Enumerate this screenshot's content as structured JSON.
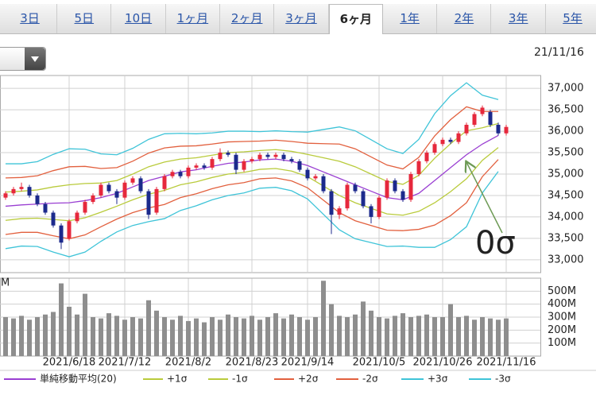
{
  "tabs": [
    "3日",
    "5日",
    "10日",
    "1ヶ月",
    "2ヶ月",
    "3ヶ月",
    "6ヶ月",
    "1年",
    "2年",
    "3年",
    "5年"
  ],
  "selected_tab": 6,
  "date": "21/11/16",
  "chart_data": [
    {
      "type": "candlestick",
      "annotation": "0σ",
      "annotation_color": "#7aab3c",
      "up_color": "#e6283c",
      "down_color": "#1c2a8c",
      "ylim": [
        32700,
        37300
      ],
      "yticks": [
        {
          "value": 33000,
          "label": "33,000"
        },
        {
          "value": 33500,
          "label": "33,500"
        },
        {
          "value": 34000,
          "label": "34,000"
        },
        {
          "value": 34500,
          "label": "34,500"
        },
        {
          "value": 35000,
          "label": "35,000"
        },
        {
          "value": 35500,
          "label": "35,500"
        },
        {
          "value": 36000,
          "label": "36,000"
        },
        {
          "value": 36500,
          "label": "36,500"
        },
        {
          "value": 37000,
          "label": "37,000"
        }
      ],
      "grid": true,
      "open": [
        34450,
        34550,
        34650,
        34700,
        34500,
        34300,
        34100,
        33800,
        33500,
        33900,
        34100,
        34350,
        34500,
        34750,
        34600,
        34450,
        34800,
        34900,
        34600,
        34100,
        34650,
        34950,
        35050,
        34950,
        35150,
        35200,
        35150,
        35350,
        35500,
        35450,
        35100,
        35300,
        35350,
        35450,
        35400,
        35450,
        35350,
        35300,
        35100,
        34900,
        34950,
        34600,
        34050,
        34200,
        34750,
        34600,
        34250,
        34000,
        34450,
        34850,
        34600,
        34400,
        35000,
        35300,
        35500,
        35700,
        35800,
        35750,
        35950,
        36150,
        36400,
        36450,
        36150,
        35950
      ],
      "close": [
        34550,
        34650,
        34700,
        34500,
        34300,
        34100,
        33800,
        33400,
        33900,
        34100,
        34350,
        34500,
        34750,
        34600,
        34450,
        34800,
        34900,
        34600,
        34050,
        34650,
        34950,
        35050,
        34950,
        35150,
        35200,
        35150,
        35350,
        35500,
        35450,
        35100,
        35300,
        35350,
        35450,
        35400,
        35450,
        35350,
        35300,
        35100,
        34900,
        34950,
        34600,
        34050,
        34200,
        34750,
        34600,
        34250,
        34000,
        34450,
        34850,
        34600,
        34400,
        35000,
        35300,
        35500,
        35700,
        35800,
        35750,
        35950,
        36150,
        36400,
        36550,
        36150,
        35950,
        36100
      ],
      "high": [
        34600,
        34700,
        34800,
        34750,
        34550,
        34350,
        34150,
        33850,
        33950,
        34150,
        34400,
        34550,
        34800,
        34800,
        34650,
        34850,
        34950,
        34950,
        34650,
        34700,
        35000,
        35100,
        35100,
        35200,
        35250,
        35250,
        35400,
        35600,
        35550,
        35500,
        35350,
        35400,
        35500,
        35500,
        35500,
        35500,
        35400,
        35350,
        35150,
        35000,
        35000,
        34650,
        34250,
        34800,
        34800,
        34650,
        34300,
        34500,
        34900,
        34900,
        34650,
        35050,
        35350,
        35550,
        35750,
        35850,
        35850,
        36000,
        36200,
        36450,
        36600,
        36500,
        36200,
        36150
      ],
      "low": [
        34400,
        34500,
        34600,
        34450,
        34250,
        34050,
        33750,
        33250,
        33450,
        33850,
        34050,
        34300,
        34450,
        34550,
        34300,
        34400,
        34750,
        34550,
        33950,
        34050,
        34600,
        34900,
        34900,
        34900,
        35100,
        35100,
        35100,
        35300,
        35400,
        35000,
        35050,
        35250,
        35300,
        35350,
        35350,
        35300,
        35250,
        35050,
        34850,
        34850,
        34550,
        33600,
        33950,
        34150,
        34550,
        34200,
        33850,
        33950,
        34400,
        34550,
        34350,
        34350,
        34950,
        35250,
        35450,
        35650,
        35700,
        35700,
        35900,
        36100,
        36350,
        36100,
        35900,
        35900
      ],
      "line_index": [
        0,
        2,
        4,
        6,
        8,
        10,
        12,
        14,
        16,
        18,
        20,
        22,
        24,
        26,
        28,
        30,
        32,
        34,
        36,
        38,
        40,
        42,
        44,
        46,
        48,
        50,
        52,
        54,
        56,
        58,
        60,
        62
      ],
      "series": [
        {
          "name": "+3σ",
          "color": "#3fc4d8",
          "values": [
            35240,
            35240,
            35290,
            35460,
            35590,
            35580,
            35470,
            35450,
            35600,
            35810,
            35940,
            35950,
            35940,
            35960,
            36000,
            36000,
            35990,
            36010,
            35990,
            35980,
            36040,
            36100,
            36010,
            35800,
            35590,
            35480,
            35810,
            36410,
            36830,
            37130,
            36840,
            36740
          ]
        },
        {
          "name": "-3σ",
          "color": "#3fc4d8",
          "values": [
            33260,
            33320,
            33310,
            33180,
            33070,
            33180,
            33430,
            33650,
            33800,
            33890,
            33960,
            34150,
            34260,
            34400,
            34500,
            34560,
            34670,
            34690,
            34610,
            34420,
            34060,
            33700,
            33490,
            33400,
            33310,
            33320,
            33290,
            33290,
            33470,
            33770,
            34560,
            35060
          ]
        },
        {
          "name": "+2σ",
          "color": "#e2603e",
          "values": [
            34910,
            34920,
            34960,
            35080,
            35170,
            35180,
            35130,
            35150,
            35300,
            35490,
            35610,
            35650,
            35660,
            35700,
            35750,
            35760,
            35770,
            35790,
            35760,
            35720,
            35710,
            35700,
            35590,
            35400,
            35210,
            35120,
            35390,
            35890,
            36270,
            36570,
            36460,
            36460
          ]
        },
        {
          "name": "-2σ",
          "color": "#e2603e",
          "values": [
            33590,
            33640,
            33640,
            33560,
            33490,
            33580,
            33770,
            33950,
            34100,
            34210,
            34290,
            34450,
            34540,
            34660,
            34750,
            34800,
            34890,
            34910,
            34840,
            34680,
            34390,
            34100,
            33910,
            33800,
            33690,
            33680,
            33710,
            33810,
            34030,
            34330,
            34940,
            35340
          ]
        },
        {
          "name": "+1σ",
          "color": "#b9cb3c",
          "values": [
            34580,
            34600,
            34630,
            34700,
            34750,
            34780,
            34790,
            34850,
            35000,
            35170,
            35280,
            35350,
            35380,
            35440,
            35500,
            35520,
            35550,
            35570,
            35530,
            35460,
            35380,
            35300,
            35170,
            35000,
            34830,
            34760,
            34970,
            35370,
            35710,
            36010,
            36080,
            36180
          ]
        },
        {
          "name": "-1σ",
          "color": "#b9cb3c",
          "values": [
            33920,
            33960,
            33970,
            33940,
            33910,
            33980,
            34110,
            34250,
            34400,
            34530,
            34620,
            34750,
            34820,
            34920,
            35000,
            35040,
            35110,
            35130,
            35070,
            34940,
            34720,
            34500,
            34330,
            34200,
            34070,
            34040,
            34130,
            34330,
            34590,
            34890,
            35320,
            35620
          ]
        },
        {
          "name": "単純移動平均(20)",
          "color": "#9a3fd2",
          "values": [
            34250,
            34280,
            34300,
            34320,
            34330,
            34380,
            34450,
            34550,
            34700,
            34850,
            34950,
            35050,
            35100,
            35180,
            35250,
            35280,
            35330,
            35350,
            35300,
            35200,
            35050,
            34900,
            34750,
            34600,
            34450,
            34400,
            34550,
            34850,
            35150,
            35450,
            35700,
            35900
          ]
        }
      ]
    },
    {
      "type": "bar",
      "unit_label": "M",
      "color": "#8e8e8e",
      "categories": [
        null,
        null,
        null,
        null,
        null,
        null,
        null,
        null,
        "2021/6/18",
        null,
        null,
        null,
        null,
        null,
        null,
        "2021/7/12",
        null,
        null,
        null,
        null,
        null,
        null,
        null,
        "2021/8/2",
        null,
        null,
        null,
        null,
        null,
        null,
        null,
        "2021/8/23",
        null,
        null,
        null,
        null,
        null,
        null,
        "2021/9/14",
        null,
        null,
        null,
        null,
        null,
        null,
        null,
        null,
        "2021/10/5",
        null,
        null,
        null,
        null,
        null,
        null,
        null,
        "2021/10/26",
        null,
        null,
        null,
        null,
        null,
        null,
        null,
        "2021/11/16"
      ],
      "values": [
        300,
        290,
        310,
        280,
        300,
        320,
        340,
        560,
        380,
        320,
        480,
        300,
        290,
        330,
        310,
        280,
        300,
        290,
        430,
        350,
        300,
        280,
        310,
        270,
        290,
        260,
        300,
        280,
        320,
        300,
        290,
        310,
        280,
        300,
        330,
        290,
        320,
        300,
        280,
        300,
        580,
        400,
        310,
        300,
        320,
        420,
        350,
        300,
        290,
        310,
        330,
        300,
        310,
        320,
        300,
        300,
        400,
        300,
        310,
        280,
        300,
        290,
        280,
        290
      ],
      "ylim": [
        0,
        600
      ],
      "yticks": [
        {
          "value": 100,
          "label": "100M"
        },
        {
          "value": 200,
          "label": "200M"
        },
        {
          "value": 300,
          "label": "300M"
        },
        {
          "value": 400,
          "label": "400M"
        },
        {
          "value": 500,
          "label": "500M"
        }
      ],
      "grid": true
    }
  ]
}
